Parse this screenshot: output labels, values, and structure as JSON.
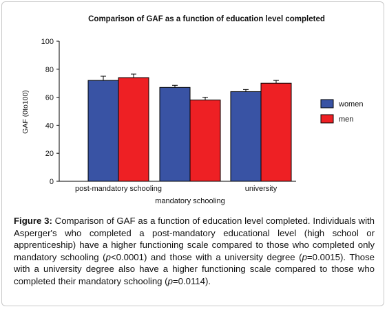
{
  "chart_data": {
    "type": "bar",
    "title": "Comparison of GAF as a function of education level completed",
    "ylabel": "GAF (0to100)",
    "xlabel": "",
    "ylim": [
      0,
      100
    ],
    "yticks": [
      0,
      20,
      40,
      60,
      80,
      100
    ],
    "categories": [
      "post-mandatory schooling",
      "mandatory schooling",
      "university"
    ],
    "series": [
      {
        "name": "women",
        "color": "#3953a4",
        "values": [
          72,
          67,
          64
        ],
        "errors": [
          3,
          1.5,
          1.5
        ]
      },
      {
        "name": "men",
        "color": "#ee2024",
        "values": [
          74,
          58,
          70
        ],
        "errors": [
          2.5,
          2,
          2
        ]
      }
    ],
    "legend_position": "right",
    "grid": false,
    "error_bars": true
  },
  "caption": {
    "label": "Figure 3:",
    "text_parts": [
      " Comparison of GAF as a function of education level completed. Individuals with Asperger's who completed a post-mandatory educational level (high school or apprenticeship) have a higher functioning scale compared to those who completed only mandatory schooling (",
      "p",
      "<0.0001) and those with a university degree (",
      "p",
      "=0.0015). Those with a university degree also have a higher functioning scale compared to those who completed their mandatory schooling (",
      "p",
      "=0.0114)."
    ]
  }
}
